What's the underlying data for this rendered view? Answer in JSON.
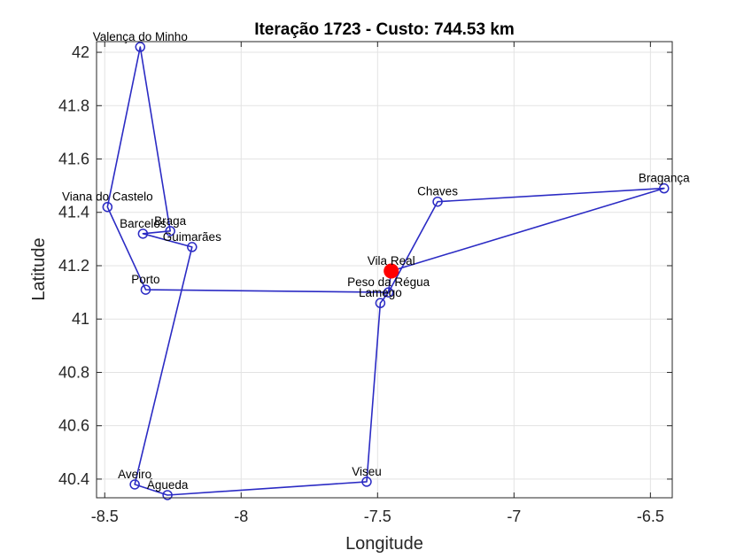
{
  "chart_data": {
    "type": "line",
    "title": "Iteração 1723 - Custo: 744.53 km",
    "xlabel": "Longitude",
    "ylabel": "Latitude",
    "xlim": [
      -8.53,
      -6.42
    ],
    "ylim": [
      40.33,
      42.04
    ],
    "xticks": [
      -8.5,
      -8,
      -7.5,
      -7,
      -6.5
    ],
    "xtick_labels": [
      "-8.5",
      "-8",
      "-7.5",
      "-7",
      "-6.5"
    ],
    "yticks": [
      40.4,
      40.6,
      40.8,
      41,
      41.2,
      41.4,
      41.6,
      41.8,
      42
    ],
    "ytick_labels": [
      "40.4",
      "40.6",
      "40.8",
      "41",
      "41.2",
      "41.4",
      "41.6",
      "41.8",
      "42"
    ],
    "grid": true,
    "line_color": "#2b2bc4",
    "current_color": "#ff0000",
    "current_city": "Vila Real",
    "cities": [
      {
        "name": "Valença do Minho",
        "x": -8.37,
        "y": 42.02
      },
      {
        "name": "Viana do Castelo",
        "x": -8.49,
        "y": 41.42
      },
      {
        "name": "Barcelos",
        "x": -8.36,
        "y": 41.32
      },
      {
        "name": "Braga",
        "x": -8.26,
        "y": 41.33
      },
      {
        "name": "Guimarães",
        "x": -8.18,
        "y": 41.27
      },
      {
        "name": "Porto",
        "x": -8.35,
        "y": 41.11
      },
      {
        "name": "Vila Real",
        "x": -7.45,
        "y": 41.18
      },
      {
        "name": "Peso da Régua",
        "x": -7.46,
        "y": 41.1
      },
      {
        "name": "Lamego",
        "x": -7.49,
        "y": 41.06
      },
      {
        "name": "Chaves",
        "x": -7.28,
        "y": 41.44
      },
      {
        "name": "Bragança",
        "x": -6.45,
        "y": 41.49
      },
      {
        "name": "Viseu",
        "x": -7.54,
        "y": 40.39
      },
      {
        "name": "Aveiro",
        "x": -8.39,
        "y": 40.38
      },
      {
        "name": "Águeda",
        "x": -8.27,
        "y": 40.34
      }
    ],
    "route": [
      "Vila Real",
      "Bragança",
      "Chaves",
      "Peso da Régua",
      "Lamego",
      "Viseu",
      "Águeda",
      "Aveiro",
      "Guimarães",
      "Barcelos",
      "Braga",
      "Valença do Minho",
      "Viana do Castelo",
      "Porto",
      "Peso da Régua",
      "Vila Real"
    ]
  }
}
